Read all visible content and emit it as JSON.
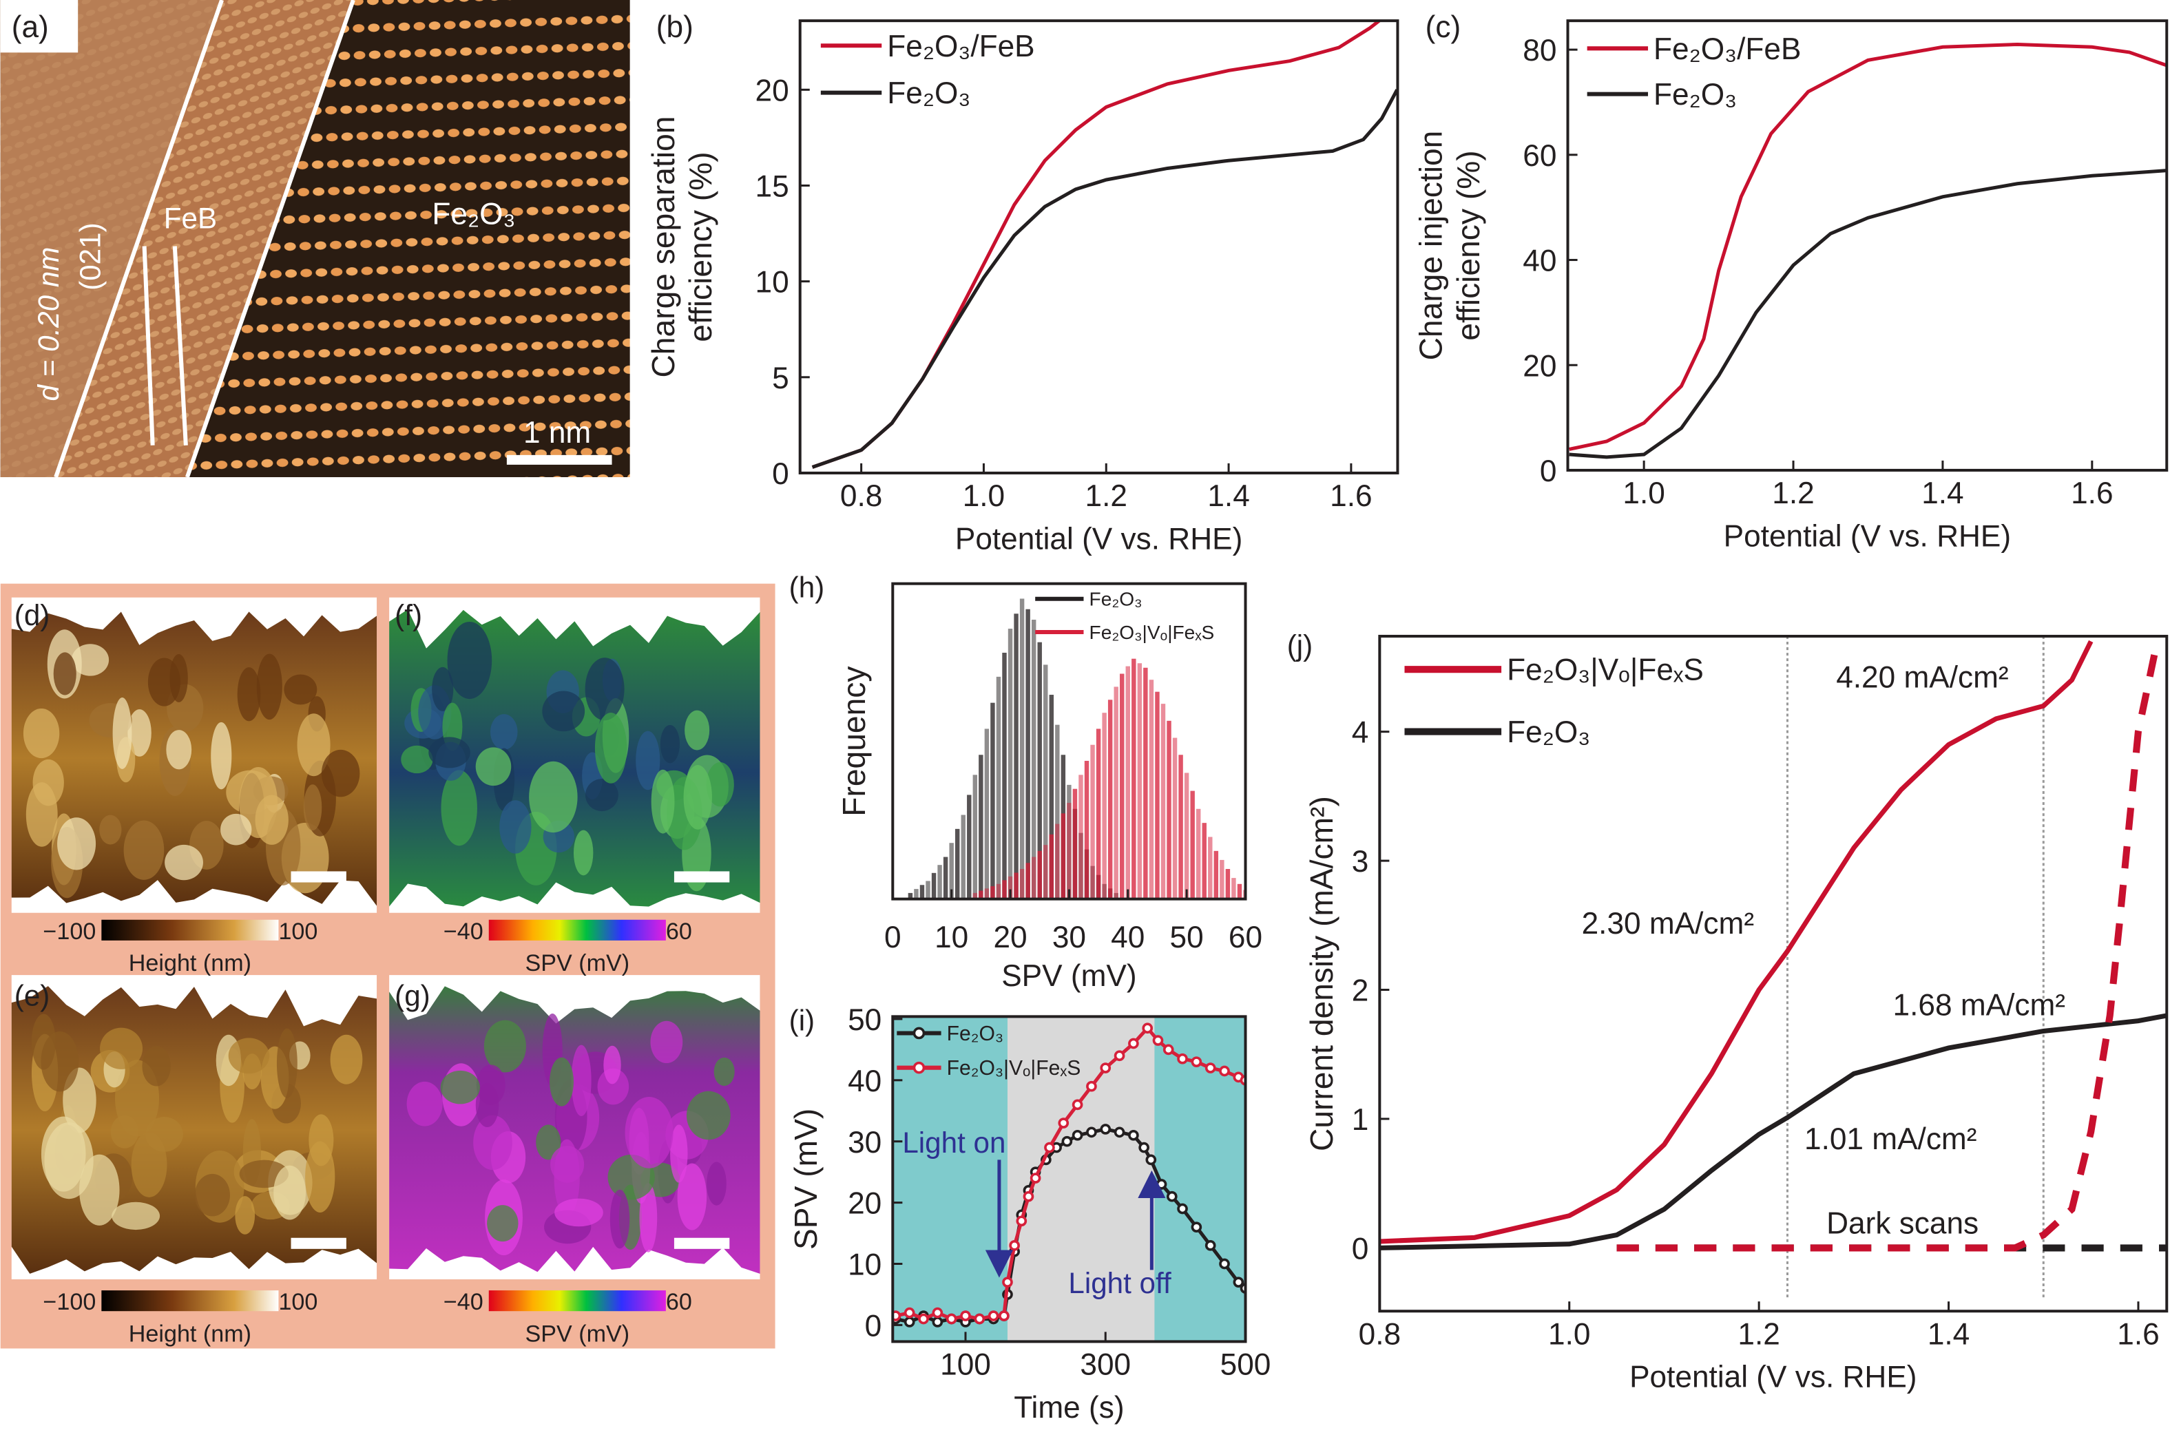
{
  "panel_labels": {
    "a": "(a)",
    "b": "(b)",
    "c": "(c)",
    "d": "(d)",
    "e": "(e)",
    "f": "(f)",
    "g": "(g)",
    "h": "(h)",
    "i": "(i)",
    "j": "(j)"
  },
  "panel_a": {
    "region_left": "FeB",
    "region_right": "Fe₂O₃",
    "d_spacing": "d = 0.20 nm",
    "plane": "(021)",
    "scale_bar": "1 nm"
  },
  "panels_dg": {
    "height_min": "−100",
    "height_max": "100",
    "height_label": "Height (nm)",
    "spv_min": "−40",
    "spv_max": "60",
    "spv_label": "SPV (mV)",
    "background_color": "#f2b49a"
  },
  "chart_data": [
    {
      "panel": "(b)",
      "type": "line",
      "xlabel": "Potential (V vs. RHE)",
      "ylabel": [
        "Charge separation",
        "efficiency (%)"
      ],
      "xlim": [
        0.7,
        1.676
      ],
      "ylim": [
        0,
        23.6
      ],
      "xticks": [
        0.8,
        1.0,
        1.2,
        1.4,
        1.6
      ],
      "xticklabels": [
        "0.8",
        "1.0",
        "1.2",
        "1.4",
        "1.6"
      ],
      "yticks": [
        0,
        5,
        10,
        15,
        20
      ],
      "yticklabels": [
        "0",
        "5",
        "10",
        "15",
        "20"
      ],
      "legend": "top-left",
      "series": [
        {
          "name": "Fe₂O₃/FeB",
          "color": "#c8102e",
          "x": [
            0.72,
            0.8,
            0.85,
            0.9,
            0.95,
            1.0,
            1.05,
            1.1,
            1.15,
            1.2,
            1.3,
            1.4,
            1.5,
            1.58,
            1.63,
            1.65
          ],
          "y": [
            0.3,
            1.2,
            2.6,
            4.9,
            7.8,
            10.9,
            14.0,
            16.3,
            17.9,
            19.1,
            20.3,
            21.0,
            21.5,
            22.2,
            23.2,
            23.7
          ]
        },
        {
          "name": "Fe₂O₃",
          "color": "#231f20",
          "x": [
            0.72,
            0.8,
            0.85,
            0.9,
            0.95,
            1.0,
            1.05,
            1.1,
            1.15,
            1.2,
            1.3,
            1.4,
            1.5,
            1.57,
            1.62,
            1.65,
            1.675
          ],
          "y": [
            0.3,
            1.2,
            2.6,
            4.9,
            7.6,
            10.2,
            12.4,
            13.9,
            14.8,
            15.3,
            15.9,
            16.3,
            16.6,
            16.8,
            17.4,
            18.5,
            20.0
          ]
        }
      ]
    },
    {
      "panel": "(c)",
      "type": "line",
      "xlabel": "Potential (V vs. RHE)",
      "ylabel": [
        "Charge injection",
        "efficiency (%)"
      ],
      "xlim": [
        0.898,
        1.7
      ],
      "ylim": [
        0,
        85.5
      ],
      "xticks": [
        1.0,
        1.2,
        1.4,
        1.6
      ],
      "xticklabels": [
        "1.0",
        "1.2",
        "1.4",
        "1.6"
      ],
      "yticks": [
        0,
        20,
        40,
        60,
        80
      ],
      "yticklabels": [
        "0",
        "20",
        "40",
        "60",
        "80"
      ],
      "legend": "top-left",
      "series": [
        {
          "name": "Fe₂O₃/FeB",
          "color": "#c8102e",
          "x": [
            0.9,
            0.95,
            1.0,
            1.05,
            1.08,
            1.1,
            1.13,
            1.17,
            1.22,
            1.3,
            1.4,
            1.5,
            1.6,
            1.65,
            1.7
          ],
          "y": [
            4,
            5.5,
            9,
            16,
            25,
            38,
            52,
            64,
            72,
            78,
            80.5,
            81,
            80.5,
            79.5,
            77
          ]
        },
        {
          "name": "Fe₂O₃",
          "color": "#231f20",
          "x": [
            0.9,
            0.95,
            1.0,
            1.05,
            1.1,
            1.15,
            1.2,
            1.25,
            1.3,
            1.4,
            1.5,
            1.6,
            1.7
          ],
          "y": [
            3,
            2.5,
            3,
            8,
            18,
            30,
            39,
            45,
            48,
            52,
            54.5,
            56,
            57
          ]
        }
      ]
    },
    {
      "panel": "(h)",
      "type": "bar",
      "xlabel": "SPV (mV)",
      "ylabel": [
        "Frequency"
      ],
      "xlim": [
        0,
        60
      ],
      "ylim": [
        0,
        1.05
      ],
      "xticks": [
        0,
        10,
        20,
        30,
        40,
        50,
        60
      ],
      "xticklabels": [
        "0",
        "10",
        "20",
        "30",
        "40",
        "50",
        "60"
      ],
      "yticks": [],
      "yticklabels": [],
      "legend": "top-right",
      "series": [
        {
          "name": "Fe₂O₃",
          "color": "#231f20",
          "x": [
            3,
            6,
            9,
            12,
            15,
            18,
            20,
            22,
            24,
            26,
            28,
            30,
            32,
            34,
            36,
            38
          ],
          "y": [
            0.02,
            0.06,
            0.14,
            0.28,
            0.48,
            0.74,
            0.9,
            1.0,
            0.93,
            0.78,
            0.58,
            0.38,
            0.22,
            0.11,
            0.05,
            0.02
          ]
        },
        {
          "name": "Fe₂O₃|Vₒ|FeₓS",
          "color": "#d6203a",
          "x": [
            14,
            18,
            22,
            26,
            30,
            33,
            36,
            39,
            41,
            43,
            46,
            49,
            52,
            55,
            58,
            60
          ],
          "y": [
            0.02,
            0.05,
            0.1,
            0.18,
            0.32,
            0.46,
            0.62,
            0.75,
            0.8,
            0.77,
            0.65,
            0.48,
            0.3,
            0.16,
            0.07,
            0.03
          ]
        }
      ]
    },
    {
      "panel": "(i)",
      "type": "line",
      "xlabel": "Time (s)",
      "ylabel": [
        "SPV (mV)"
      ],
      "xlim": [
        -4,
        500
      ],
      "ylim": [
        -2.7,
        50.4
      ],
      "xticks": [
        100,
        300,
        500
      ],
      "xticklabels": [
        "100",
        "300",
        "500"
      ],
      "yticks": [
        0,
        10,
        20,
        30,
        40,
        50
      ],
      "yticklabels": [
        "0",
        "10",
        "20",
        "30",
        "40",
        "50"
      ],
      "legend": "top-left",
      "light_on_interval": [
        160,
        370
      ],
      "annotations": {
        "light_on": "Light on",
        "light_off": "Light off"
      },
      "colors": {
        "dark_bg": "#7fcbcc",
        "light_bg": "#d9d9d9",
        "annotation": "#2e3192"
      },
      "series": [
        {
          "name": "Fe₂O₃",
          "color": "#231f20",
          "x": [
            0,
            20,
            40,
            60,
            80,
            100,
            120,
            140,
            155,
            160,
            170,
            180,
            190,
            200,
            215,
            230,
            245,
            260,
            280,
            300,
            320,
            340,
            355,
            365,
            380,
            395,
            410,
            430,
            450,
            470,
            490,
            500
          ],
          "y": [
            1,
            0.5,
            1.5,
            0.5,
            1,
            0.5,
            1,
            1,
            1.5,
            5,
            12,
            18,
            22,
            25,
            27,
            29,
            30,
            31,
            31.5,
            32,
            31.5,
            31,
            29,
            27,
            23,
            21,
            19,
            16,
            13,
            10,
            7,
            6
          ]
        },
        {
          "name": "Fe₂O₃|Vₒ|FeₓS",
          "color": "#d6203a",
          "x": [
            0,
            20,
            40,
            60,
            80,
            100,
            120,
            140,
            155,
            160,
            170,
            180,
            190,
            200,
            220,
            240,
            260,
            280,
            300,
            320,
            340,
            360,
            375,
            390,
            410,
            430,
            450,
            470,
            490,
            500
          ],
          "y": [
            1.5,
            2,
            1,
            2,
            1,
            1.5,
            1,
            1.5,
            1.5,
            7,
            13,
            17,
            21,
            24,
            29,
            33,
            36,
            39,
            42,
            44,
            46,
            48.5,
            46.5,
            45,
            43.5,
            43,
            42,
            41.5,
            40.5,
            40
          ]
        }
      ]
    },
    {
      "panel": "(j)",
      "type": "line",
      "xlabel": "Potential (V vs. RHE)",
      "ylabel": [
        "Current density (mA/cm²)"
      ],
      "xlim": [
        0.8,
        1.63
      ],
      "ylim": [
        -0.49,
        4.74
      ],
      "xticks": [
        0.8,
        1.0,
        1.2,
        1.4,
        1.6
      ],
      "xticklabels": [
        "0.8",
        "1.0",
        "1.2",
        "1.4",
        "1.6"
      ],
      "yticks": [
        0,
        1,
        2,
        3,
        4
      ],
      "yticklabels": [
        "0",
        "1",
        "2",
        "3",
        "4"
      ],
      "legend": "top-left",
      "reference_lines_x": [
        1.23,
        1.5
      ],
      "annotations": [
        {
          "text": "4.20 mA/cm²",
          "x": 1.5,
          "y": 4.2
        },
        {
          "text": "2.30 mA/cm²",
          "x": 1.23,
          "y": 2.3
        },
        {
          "text": "1.68 mA/cm²",
          "x": 1.5,
          "y": 1.68
        },
        {
          "text": "1.01 mA/cm²",
          "x": 1.23,
          "y": 1.01
        },
        {
          "text": "Dark scans",
          "x": 1.4,
          "y": 0
        }
      ],
      "series": [
        {
          "name": "Fe₂O₃|Vₒ|FeₓS",
          "color": "#c8102e",
          "style": "solid",
          "x": [
            0.8,
            0.9,
            1.0,
            1.05,
            1.1,
            1.15,
            1.2,
            1.23,
            1.3,
            1.35,
            1.4,
            1.45,
            1.5,
            1.53,
            1.55
          ],
          "y": [
            0.05,
            0.08,
            0.25,
            0.45,
            0.8,
            1.35,
            2.0,
            2.3,
            3.1,
            3.55,
            3.9,
            4.1,
            4.2,
            4.4,
            4.7
          ]
        },
        {
          "name": "Fe₂O₃",
          "color": "#231f20",
          "style": "solid",
          "x": [
            0.8,
            1.0,
            1.05,
            1.1,
            1.15,
            1.2,
            1.23,
            1.3,
            1.4,
            1.5,
            1.6,
            1.63
          ],
          "y": [
            0.0,
            0.03,
            0.1,
            0.3,
            0.6,
            0.88,
            1.01,
            1.35,
            1.55,
            1.68,
            1.76,
            1.8
          ]
        },
        {
          "name": "",
          "color": "#231f20",
          "style": "dashed",
          "x": [
            1.05,
            1.63
          ],
          "y": [
            0,
            0
          ]
        },
        {
          "name": "",
          "color": "#c8102e",
          "style": "dashed",
          "x": [
            1.05,
            1.47,
            1.5,
            1.53,
            1.55,
            1.57,
            1.58,
            1.6,
            1.62
          ],
          "y": [
            0,
            0,
            0.1,
            0.3,
            0.9,
            1.8,
            2.5,
            4.0,
            4.7
          ]
        }
      ]
    }
  ]
}
